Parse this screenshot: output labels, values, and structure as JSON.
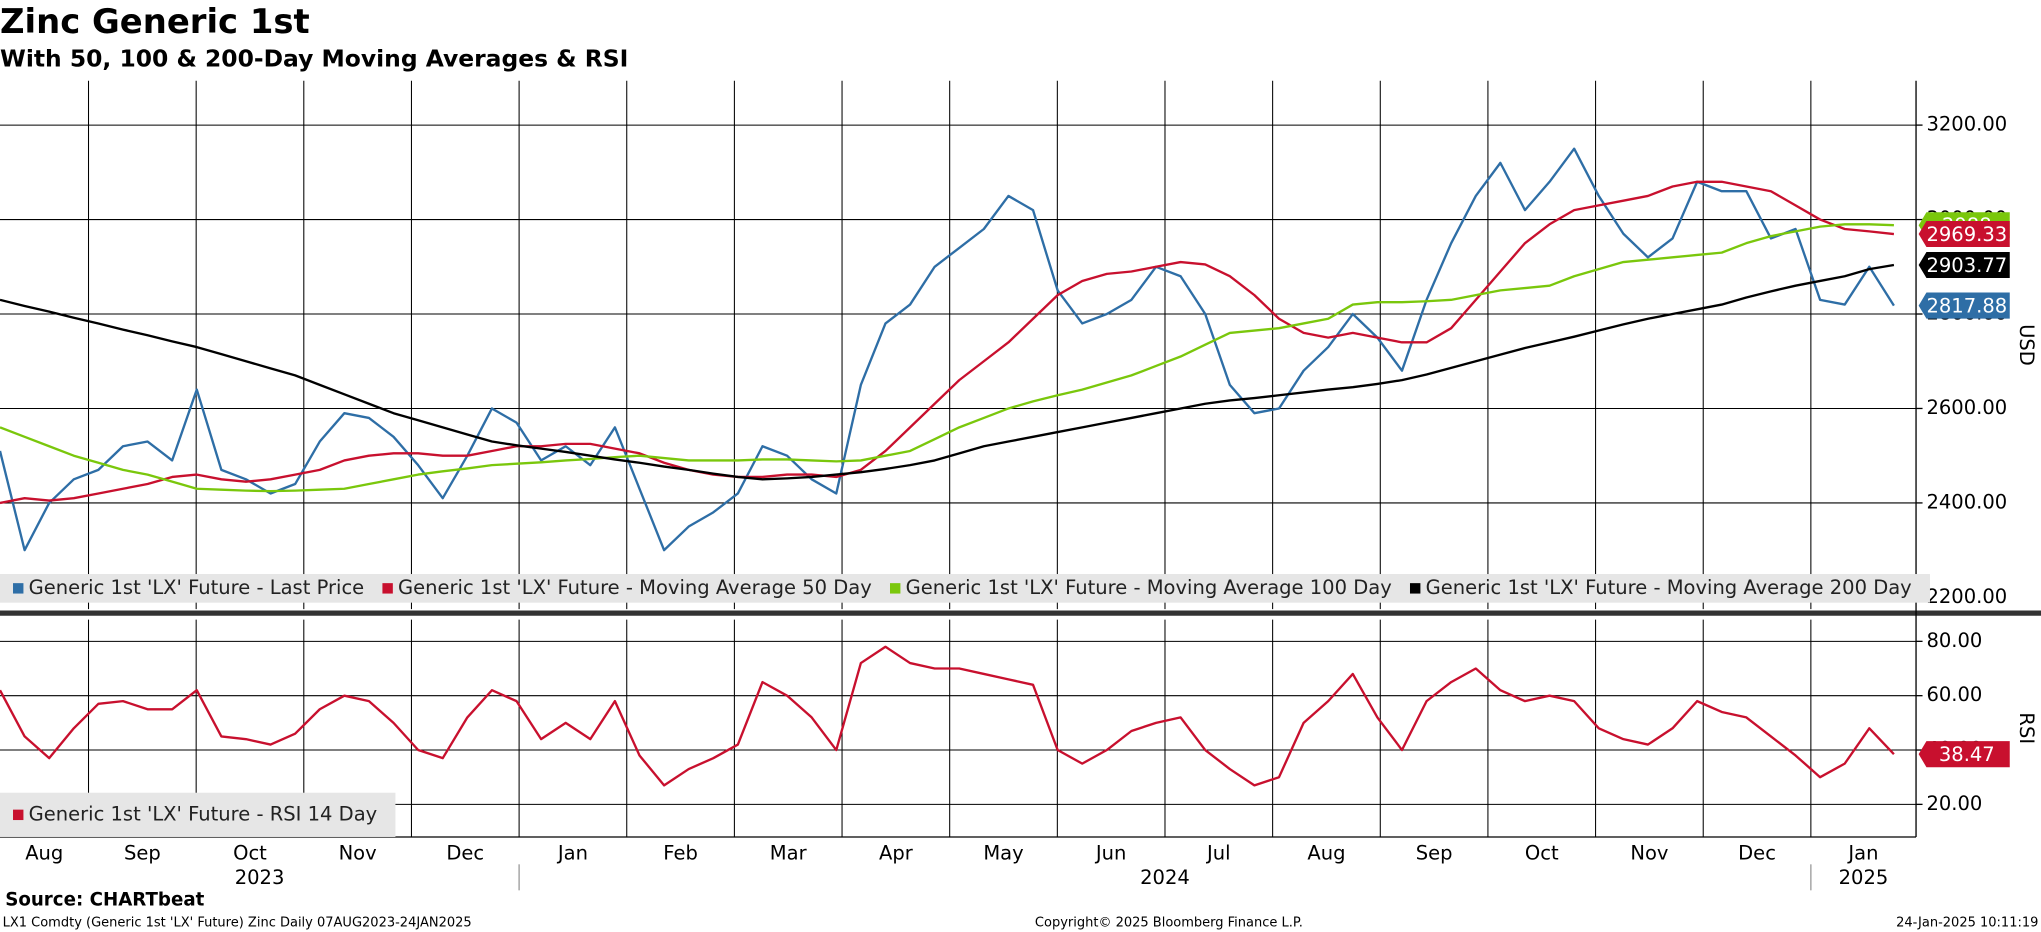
{
  "title": "Zinc Generic 1st",
  "subtitle": "With 50, 100 & 200-Day Moving Averages & RSI",
  "x_axis": {
    "months": [
      "Aug",
      "Sep",
      "Oct",
      "Nov",
      "Dec",
      "Jan",
      "Feb",
      "Mar",
      "Apr",
      "May",
      "Jun",
      "Jul",
      "Aug",
      "Sep",
      "Oct",
      "Nov",
      "Dec",
      "Jan"
    ],
    "years": [
      "2023",
      "2024",
      "2025"
    ]
  },
  "chart_data": [
    {
      "type": "line",
      "y_label": "USD",
      "ylim": [
        2175,
        3294
      ],
      "yticks": [
        {
          "value": 2200,
          "label": "2200.00"
        },
        {
          "value": 2400,
          "label": "2400.00"
        },
        {
          "value": 2600,
          "label": "2600.00"
        },
        {
          "value": 2800,
          "label": "2800.00"
        },
        {
          "value": 3000,
          "label": "3000.00"
        },
        {
          "value": 3200,
          "label": "3200.00"
        }
      ],
      "grid": true,
      "series": [
        {
          "name": "Generic 1st 'LX' Future - Last Price",
          "color": "#2e6ea6",
          "values": [
            2510,
            2300,
            2400,
            2450,
            2470,
            2520,
            2530,
            2490,
            2640,
            2470,
            2450,
            2420,
            2440,
            2530,
            2590,
            2580,
            2540,
            2480,
            2410,
            2500,
            2600,
            2570,
            2490,
            2520,
            2480,
            2560,
            2430,
            2300,
            2350,
            2380,
            2420,
            2520,
            2500,
            2450,
            2420,
            2650,
            2780,
            2820,
            2900,
            2940,
            2980,
            3050,
            3020,
            2850,
            2780,
            2800,
            2830,
            2900,
            2880,
            2800,
            2650,
            2590,
            2600,
            2680,
            2730,
            2800,
            2750,
            2680,
            2830,
            2950,
            3050,
            3120,
            3020,
            3080,
            3150,
            3050,
            2970,
            2920,
            2960,
            3080,
            3060,
            3060,
            2960,
            2980,
            2830,
            2820,
            2900,
            2817.88
          ]
        },
        {
          "name": "Generic 1st 'LX' Future - Moving Average 50 Day",
          "color": "#c8102e",
          "values": [
            2400,
            2410,
            2405,
            2410,
            2420,
            2430,
            2440,
            2455,
            2460,
            2450,
            2445,
            2450,
            2460,
            2470,
            2490,
            2500,
            2505,
            2505,
            2500,
            2500,
            2510,
            2520,
            2520,
            2525,
            2525,
            2515,
            2505,
            2485,
            2470,
            2460,
            2455,
            2455,
            2460,
            2460,
            2455,
            2470,
            2510,
            2560,
            2610,
            2660,
            2700,
            2740,
            2790,
            2840,
            2870,
            2885,
            2890,
            2900,
            2910,
            2905,
            2880,
            2840,
            2790,
            2760,
            2750,
            2760,
            2750,
            2740,
            2740,
            2770,
            2830,
            2890,
            2950,
            2990,
            3020,
            3030,
            3040,
            3050,
            3070,
            3080,
            3080,
            3070,
            3060,
            3030,
            3000,
            2980,
            2975,
            2969.33
          ]
        },
        {
          "name": "Generic 1st 'LX' Future - Moving Average 100 Day",
          "color": "#7ac70c",
          "values": [
            2560,
            2540,
            2520,
            2500,
            2485,
            2470,
            2460,
            2445,
            2430,
            2428,
            2426,
            2425,
            2426,
            2428,
            2430,
            2440,
            2450,
            2460,
            2467,
            2473,
            2480,
            2483,
            2486,
            2490,
            2493,
            2497,
            2500,
            2495,
            2490,
            2490,
            2490,
            2492,
            2492,
            2490,
            2488,
            2490,
            2500,
            2510,
            2535,
            2560,
            2580,
            2600,
            2615,
            2628,
            2640,
            2655,
            2670,
            2690,
            2710,
            2735,
            2760,
            2765,
            2770,
            2780,
            2790,
            2820,
            2825,
            2825,
            2827,
            2830,
            2840,
            2850,
            2855,
            2860,
            2880,
            2895,
            2910,
            2915,
            2920,
            2925,
            2930,
            2950,
            2965,
            2975,
            2985,
            2990,
            2990,
            2988
          ]
        },
        {
          "name": "Generic 1st 'LX' Future - Moving Average 200 Day",
          "color": "#000000",
          "values": [
            2830,
            2817,
            2805,
            2792,
            2780,
            2767,
            2755,
            2742,
            2730,
            2715,
            2700,
            2685,
            2670,
            2650,
            2630,
            2610,
            2590,
            2575,
            2560,
            2545,
            2530,
            2522,
            2515,
            2508,
            2500,
            2492,
            2485,
            2477,
            2470,
            2462,
            2455,
            2450,
            2452,
            2455,
            2460,
            2465,
            2472,
            2480,
            2490,
            2505,
            2520,
            2530,
            2540,
            2550,
            2560,
            2570,
            2580,
            2590,
            2600,
            2610,
            2617,
            2622,
            2628,
            2634,
            2640,
            2645,
            2652,
            2660,
            2672,
            2686,
            2700,
            2714,
            2728,
            2740,
            2752,
            2765,
            2778,
            2790,
            2800,
            2810,
            2820,
            2835,
            2848,
            2860,
            2870,
            2880,
            2895,
            2903.77
          ]
        }
      ]
    },
    {
      "type": "line",
      "y_label": "RSI",
      "ylim": [
        8,
        88
      ],
      "yticks": [
        {
          "value": 20,
          "label": "20.00"
        },
        {
          "value": 40,
          "label": "40.00"
        },
        {
          "value": 60,
          "label": "60.00"
        },
        {
          "value": 80,
          "label": "80.00"
        }
      ],
      "grid": true,
      "series": [
        {
          "name": "Generic 1st 'LX' Future - RSI 14 Day",
          "color": "#c8102e",
          "values": [
            62,
            45,
            37,
            48,
            57,
            58,
            55,
            55,
            62,
            45,
            44,
            42,
            46,
            55,
            60,
            58,
            50,
            40,
            37,
            52,
            62,
            58,
            44,
            50,
            44,
            58,
            38,
            27,
            33,
            37,
            42,
            65,
            60,
            52,
            40,
            72,
            78,
            72,
            70,
            70,
            68,
            66,
            64,
            40,
            35,
            40,
            47,
            50,
            52,
            40,
            33,
            27,
            30,
            50,
            58,
            68,
            52,
            40,
            58,
            65,
            70,
            62,
            58,
            60,
            58,
            48,
            44,
            42,
            48,
            58,
            54,
            52,
            45,
            38,
            30,
            35,
            48,
            38.47
          ]
        }
      ]
    }
  ],
  "source": "Source: CHARTbeat",
  "footer": {
    "left": "LX1 Comdty (Generic 1st 'LX' Future) Zinc  Daily 07AUG2023-24JAN2025",
    "center": "Copyright© 2025 Bloomberg Finance L.P.",
    "right": "24-Jan-2025 10:11:19"
  }
}
